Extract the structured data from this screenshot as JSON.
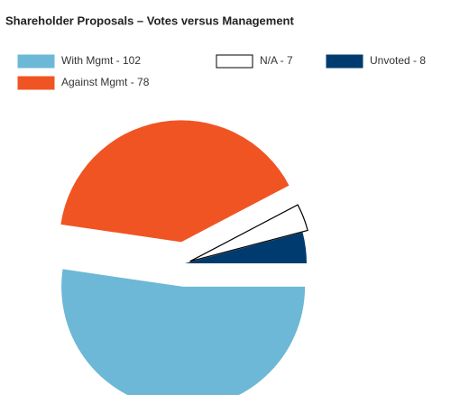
{
  "chart_data": {
    "type": "pie",
    "title": "Shareholder Proposals – Votes versus Management",
    "categories": [
      "Unvoted - 8",
      "N/A - 7",
      "Against Mgmt - 78",
      "With Mgmt - 102"
    ],
    "values": [
      8,
      7,
      78,
      102
    ],
    "colors": [
      "#003b6f",
      "#ffffff",
      "#f05423",
      "#6cb8d6"
    ],
    "legend": "top"
  }
}
